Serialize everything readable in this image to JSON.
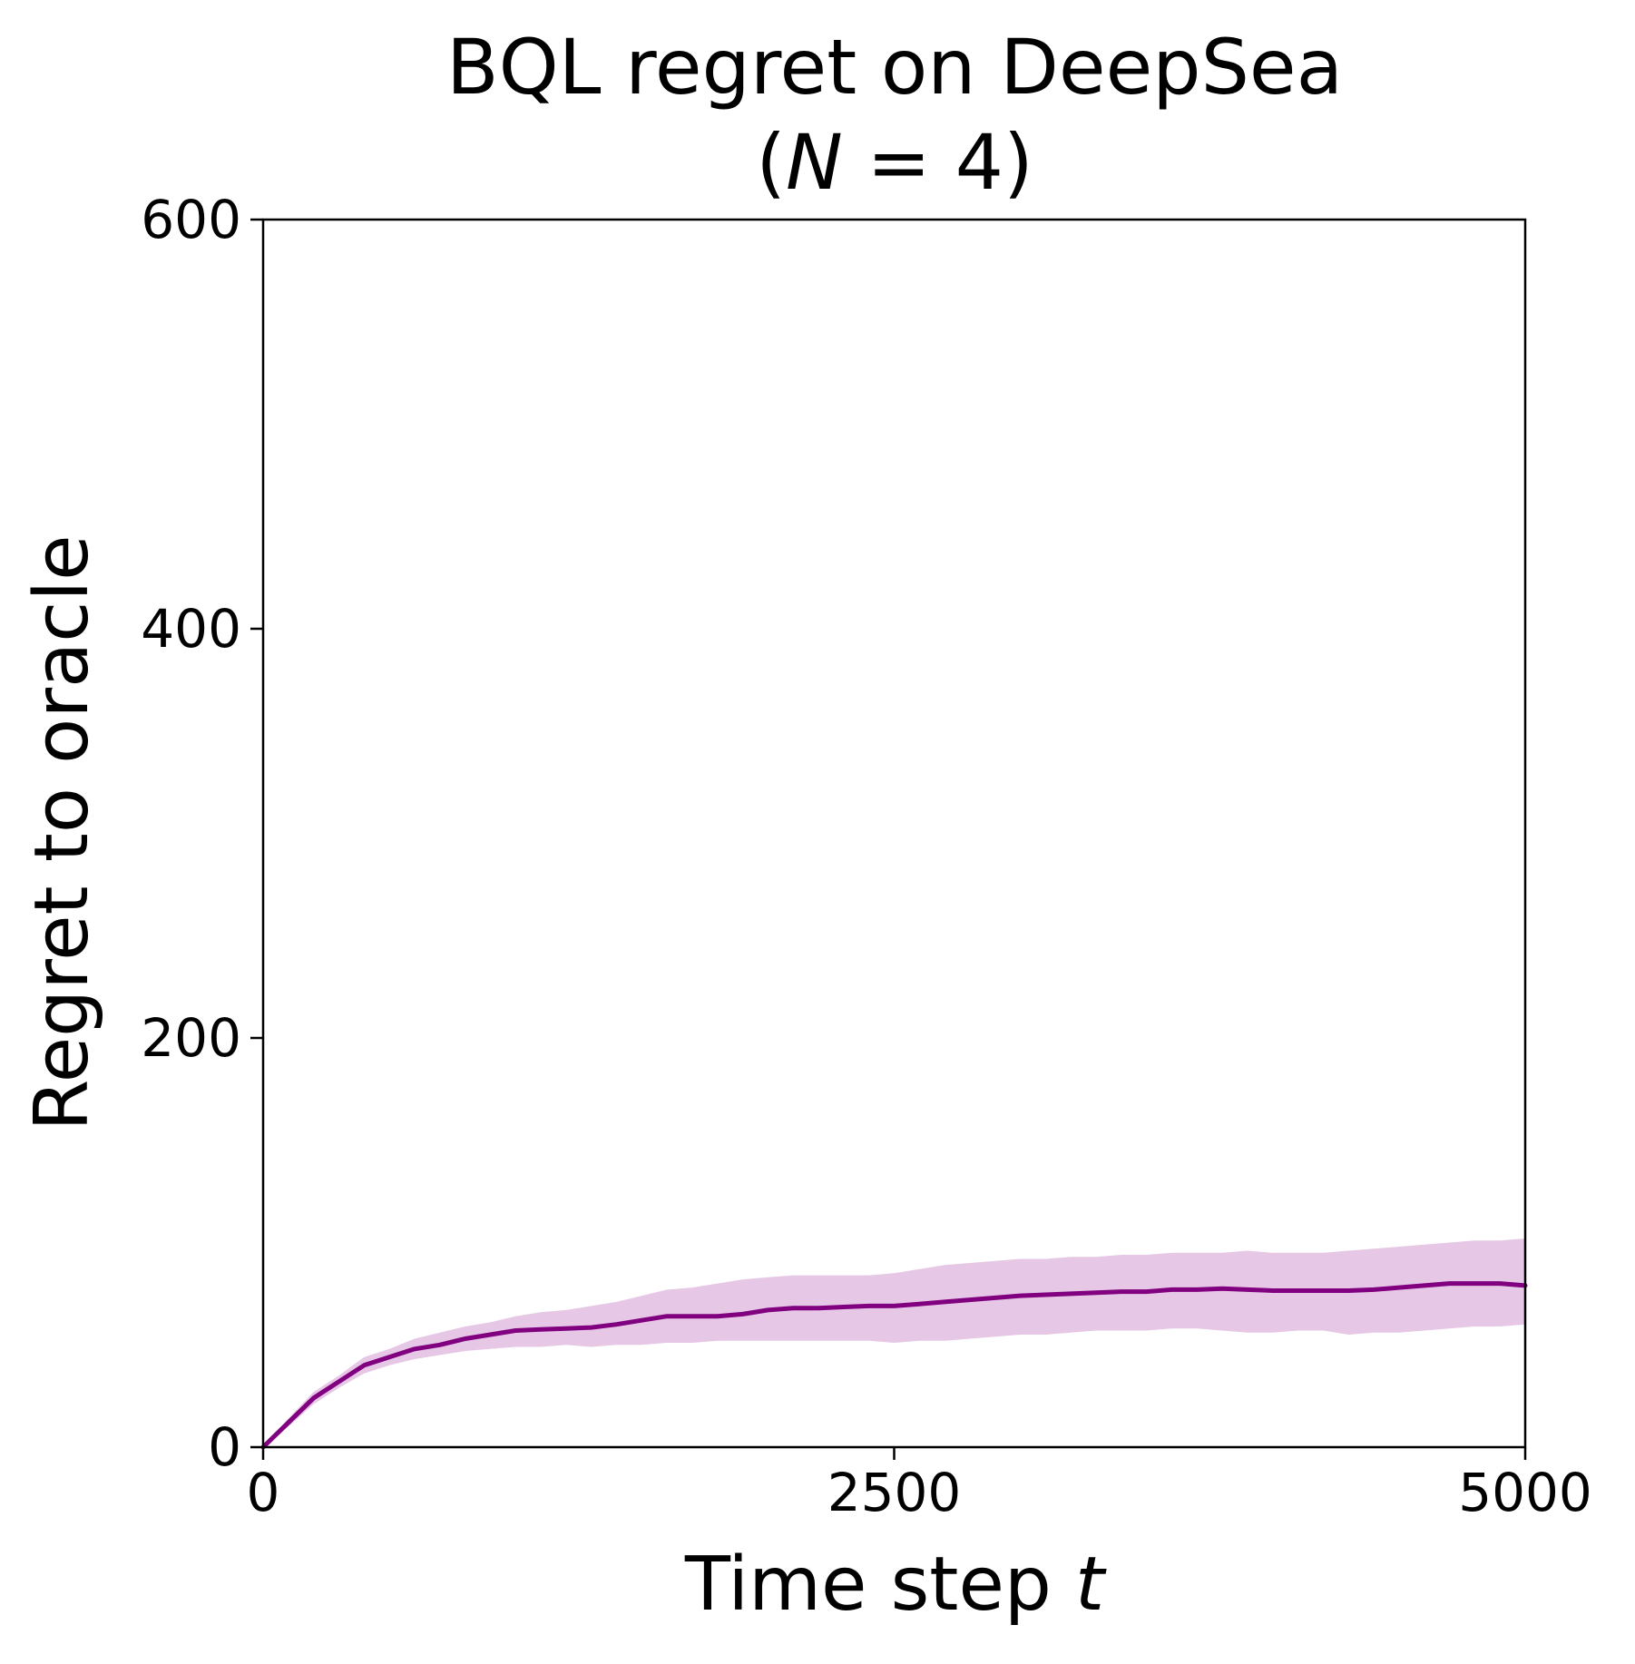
{
  "chart_data": {
    "type": "line",
    "title_line1": "BQL regret on DeepSea",
    "title_line2_prefix": "(",
    "title_line2_var": "N",
    "title_line2_suffix": " = 4)",
    "xlabel_prefix": "Time step ",
    "xlabel_var": "t",
    "ylabel": "Regret to oracle",
    "xlim": [
      0,
      5000
    ],
    "ylim": [
      0,
      600
    ],
    "xticks": [
      0,
      2500,
      5000
    ],
    "xtick_labels": [
      "0",
      "2500",
      "5000"
    ],
    "yticks": [
      0,
      200,
      400,
      600
    ],
    "ytick_labels": [
      "0",
      "200",
      "400",
      "600"
    ],
    "grid": false,
    "colors": {
      "line": "#800080",
      "band": "#e6c8e6"
    },
    "series": [
      {
        "x": [
          0,
          100,
          200,
          300,
          400,
          500,
          600,
          700,
          800,
          900,
          1000,
          1100,
          1200,
          1300,
          1400,
          1500,
          1600,
          1700,
          1800,
          1900,
          2000,
          2100,
          2200,
          2300,
          2400,
          2500,
          2600,
          2700,
          2800,
          2900,
          3000,
          3100,
          3200,
          3300,
          3400,
          3500,
          3600,
          3700,
          3800,
          3900,
          4000,
          4100,
          4200,
          4300,
          4400,
          4500,
          4600,
          4700,
          4800,
          4900,
          5000
        ],
        "y": [
          0,
          12,
          24,
          32,
          40,
          44,
          48,
          50,
          53,
          55,
          57,
          57.5,
          58,
          58.5,
          60,
          62,
          64,
          64,
          64,
          65,
          67,
          68,
          68,
          68.5,
          69,
          69,
          70,
          71,
          72,
          73,
          74,
          74.5,
          75,
          75.5,
          76,
          76,
          77,
          77,
          77.5,
          77,
          76.5,
          76.5,
          76.5,
          76.5,
          77,
          78,
          79,
          80,
          80,
          80,
          79
        ],
        "lower": [
          0,
          10,
          21,
          29,
          36,
          40,
          43,
          45,
          47,
          48,
          49,
          49,
          50,
          49,
          50,
          50,
          51,
          51,
          52,
          52,
          52,
          52,
          52,
          52,
          52,
          51,
          52,
          52,
          53,
          54,
          55,
          55,
          56,
          57,
          57,
          57,
          58,
          58,
          57,
          56,
          56,
          57,
          57,
          55,
          56,
          56,
          57,
          58,
          59,
          59,
          60
        ],
        "upper": [
          0,
          14,
          27,
          35,
          44,
          48,
          53,
          56,
          59,
          61,
          64,
          66,
          67,
          69,
          71,
          74,
          77,
          78,
          80,
          82,
          83,
          84,
          84,
          84,
          84,
          85,
          87,
          89,
          90,
          91,
          92,
          92,
          93,
          93,
          94,
          94,
          95,
          95,
          95,
          96,
          95,
          95,
          95,
          96,
          97,
          98,
          99,
          100,
          101,
          101,
          102
        ]
      }
    ]
  }
}
